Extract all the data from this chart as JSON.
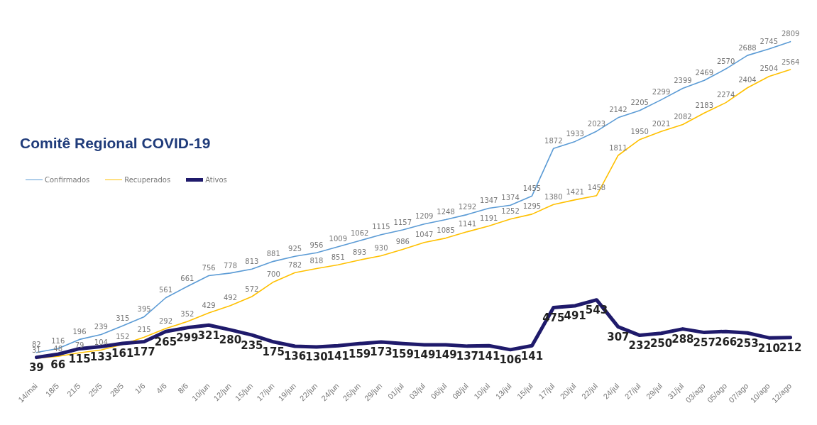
{
  "chart_data": {
    "type": "line",
    "title": "Comitê Regional COVID-19",
    "categories": [
      "14/mai",
      "18/5",
      "21/5",
      "25/5",
      "28/5",
      "1/6",
      "4/6",
      "8/6",
      "10/jun",
      "12/jun",
      "15/jun",
      "17/jun",
      "19/jun",
      "22/jun",
      "24/jun",
      "26/jun",
      "29/jun",
      "01/jul",
      "03/jul",
      "06/jul",
      "08/jul",
      "10/jul",
      "13/jul",
      "15/jul",
      "17/jul",
      "20/jul",
      "22/jul",
      "24/jul",
      "27/jul",
      "29/jul",
      "31/jul",
      "03/ago",
      "05/ago",
      "07/ago",
      "10/ago",
      "12/ago"
    ],
    "series": [
      {
        "name": "Confirmados",
        "color": "#5b9bd5",
        "values": [
          82,
          116,
          196,
          239,
          315,
          395,
          561,
          661,
          756,
          778,
          813,
          881,
          925,
          956,
          1009,
          1062,
          1115,
          1157,
          1209,
          1248,
          1292,
          1347,
          1374,
          1455,
          1872,
          1933,
          2023,
          2142,
          2205,
          2299,
          2399,
          2469,
          2570,
          2688,
          2745,
          2809
        ]
      },
      {
        "name": "Recuperados",
        "color": "#ffc000",
        "values": [
          31,
          48,
          79,
          104,
          152,
          215,
          292,
          352,
          429,
          492,
          572,
          700,
          782,
          818,
          851,
          893,
          930,
          986,
          1047,
          1085,
          1141,
          1191,
          1252,
          1295,
          1380,
          1421,
          1458,
          1811,
          1950,
          2021,
          2082,
          2183,
          2274,
          2404,
          2504,
          2564
        ]
      },
      {
        "name": "Ativos",
        "color": "#1f1a6b",
        "values": [
          39,
          66,
          115,
          133,
          161,
          177,
          265,
          299,
          321,
          280,
          235,
          175,
          136,
          130,
          141,
          159,
          173,
          159,
          149,
          149,
          137,
          141,
          106,
          141,
          475,
          491,
          543,
          307,
          232,
          250,
          288,
          257,
          266,
          253,
          210,
          212
        ]
      }
    ],
    "data_labels": true,
    "legend": "top left",
    "grid": false,
    "marker": "none",
    "line_style": "solid"
  }
}
